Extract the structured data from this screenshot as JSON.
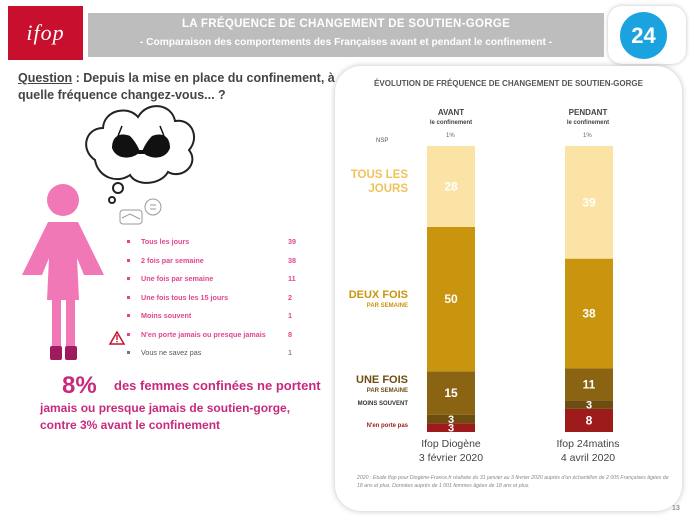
{
  "header": {
    "logo_text": "ifop",
    "title": "LA FRÉQUENCE DE CHANGEMENT DE SOUTIEN-GORGE",
    "subtitle": "- Comparaison des comportements des Françaises avant et pendant le confinement -",
    "badge": "24"
  },
  "question": {
    "label": "Question",
    "text": " : Depuis la mise en place du confinement, à quelle fréquence changez-vous... ?"
  },
  "legend": [
    {
      "label": "Tous les jours",
      "value": "39"
    },
    {
      "label": "2 fois par semaine",
      "value": "38"
    },
    {
      "label": "Une fois par semaine",
      "value": "11"
    },
    {
      "label": "Une fois tous les 15 jours",
      "value": "2"
    },
    {
      "label": "Moins souvent",
      "value": "1"
    },
    {
      "label": "N'en porte jamais ou presque jamais",
      "value": "8"
    },
    {
      "label": "Vous ne savez pas",
      "value": "1"
    }
  ],
  "stat": {
    "big": "8%",
    "line1": "des femmes confinées ne portent",
    "line2": "jamais ou presque jamais de soutien-gorge,",
    "line3": "contre 3% avant le confinement"
  },
  "chart_data": {
    "type": "bar",
    "stacked": true,
    "title": "ÉVOLUTION DE FRÉQUENCE DE CHANGEMENT DE SOUTIEN-GORGE",
    "columns": [
      {
        "head": "AVANT",
        "sub": "le confinement",
        "source": "Ifop Diogène",
        "date": "3 février 2020"
      },
      {
        "head": "PENDANT",
        "sub": "le confinement",
        "source": "Ifop 24matins",
        "date": "4 avril 2020"
      }
    ],
    "nsp_label": "NSP",
    "nsp": [
      "1%",
      "1%"
    ],
    "series": [
      {
        "name": "N'en porte pas",
        "color": "#9e1b1b",
        "values": [
          3,
          8
        ]
      },
      {
        "name": "MOINS SOUVENT",
        "color": "#6e4e10",
        "values": [
          3,
          3
        ]
      },
      {
        "name": "UNE FOIS",
        "sub": "PAR SEMAINE",
        "color": "#8a6412",
        "values": [
          15,
          11
        ]
      },
      {
        "name": "DEUX FOIS",
        "sub": "PAR SEMAINE",
        "color": "#c9950f",
        "values": [
          50,
          38
        ]
      },
      {
        "name": "TOUS LES JOURS",
        "color": "#fbe3a5",
        "values": [
          28,
          39
        ]
      }
    ]
  },
  "footnote": "2020 : Etude Ifop pour Diogène-France.fr réalisée du 31 janvier au 3 février 2020 auprès d'un échantillon de 2 005 Françaises âgées de 18 ans et plus. Données auprès de 1 001 femmes âgées de 18 ans et plus.",
  "page_number": "13",
  "colors": {
    "brand_red": "#c8102e",
    "pink": "#e0468f",
    "magenta": "#c72a7d",
    "blue": "#1aa3df"
  }
}
